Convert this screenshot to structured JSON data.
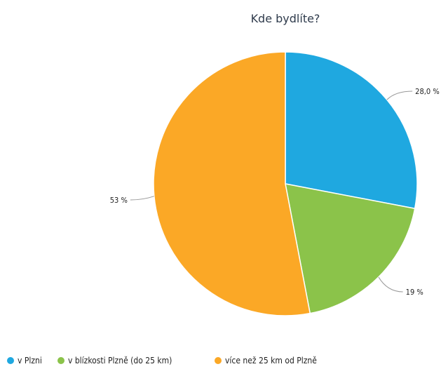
{
  "chart_data": {
    "type": "pie",
    "title": "Kde bydlíte?",
    "categories": [
      "v Plzni",
      "v blízkosti Plzně (do 25 km)",
      "více než 25 km od Plzně"
    ],
    "values": [
      28.0,
      19,
      53
    ],
    "labels": [
      "28,0 %",
      "19 %",
      "53 %"
    ],
    "colors": [
      "#1fa8e0",
      "#8bc34a",
      "#fba826"
    ],
    "legend": "bottom-left"
  }
}
